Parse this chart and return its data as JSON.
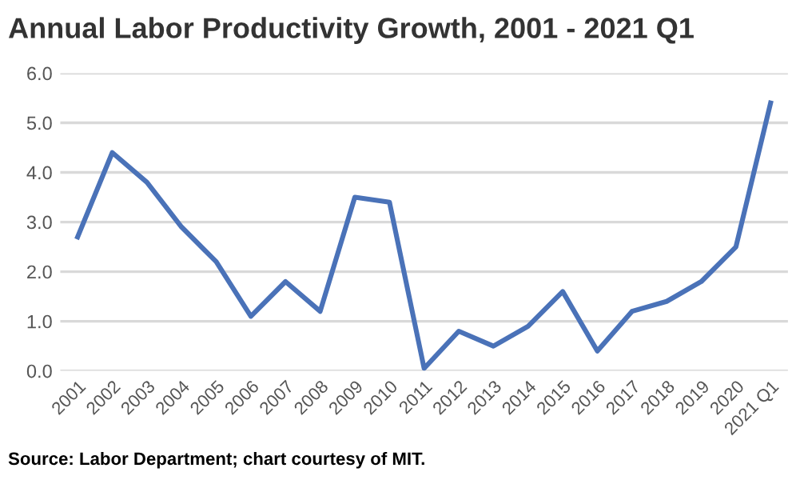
{
  "chart_data": {
    "type": "line",
    "title": "Annual Labor Productivity Growth, 2001 - 2021 Q1",
    "categories": [
      "2001",
      "2002",
      "2003",
      "2004",
      "2005",
      "2006",
      "2007",
      "2008",
      "2009",
      "2010",
      "2011",
      "2012",
      "2013",
      "2014",
      "2015",
      "2016",
      "2017",
      "2018",
      "2019",
      "2020",
      "2021 Q1"
    ],
    "series": [
      {
        "color": "#4a72b8",
        "values": [
          2.7,
          4.4,
          3.8,
          2.9,
          2.2,
          1.1,
          1.8,
          1.2,
          3.5,
          3.4,
          0.05,
          0.8,
          0.5,
          0.9,
          1.6,
          0.4,
          1.2,
          1.4,
          1.8,
          2.5,
          5.4
        ]
      }
    ],
    "ylim": [
      0,
      6
    ],
    "yticks": [
      {
        "value": 0,
        "label": "0.0"
      },
      {
        "value": 1,
        "label": "1.0"
      },
      {
        "value": 2,
        "label": "2.0"
      },
      {
        "value": 3,
        "label": "3.0"
      },
      {
        "value": 4,
        "label": "4.0"
      },
      {
        "value": 5,
        "label": "5.0"
      },
      {
        "value": 6,
        "label": "6.0"
      }
    ],
    "grid": "y",
    "legend": false,
    "marker": "none",
    "line_style": "solid",
    "annotations": [
      "Source: Labor Department; chart courtesy of MIT."
    ]
  }
}
